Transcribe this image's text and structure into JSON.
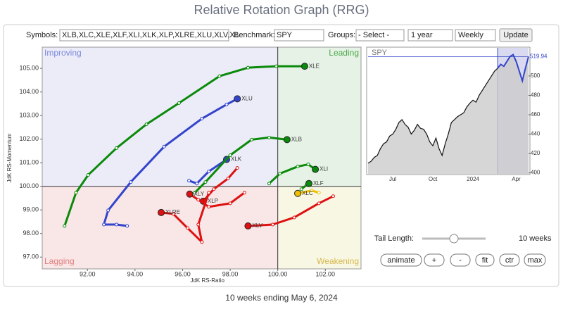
{
  "title": "Relative Rotation Graph (RRG)",
  "controls": {
    "symbols_label": "Symbols:",
    "symbols": "XLB,XLC,XLE,XLF,XLI,XLK,XLP,XLRE,XLU,XLV,XL",
    "benchmark_label": "Benchmark:",
    "benchmark": "SPY",
    "groups_label": "Groups:",
    "groups": "- Select -",
    "period": "1 year",
    "frequency": "Weekly",
    "update": "Update",
    "tail_label": "Tail Length:",
    "tail": "10 weeks",
    "buttons": [
      "animate",
      "+",
      "-",
      "fit",
      "ctr",
      "max"
    ]
  },
  "footer": "10 weeks ending May 6, 2024",
  "chart_data": [
    {
      "type": "rrg",
      "xlabel": "JdK RS-Ratio",
      "ylabel": "JdK RS-Momentum",
      "quadrants": {
        "improving": "Improving",
        "leading": "Leading",
        "lagging": "Lagging",
        "weakening": "Weakening"
      },
      "xlim": [
        90.1,
        103.5
      ],
      "ylim": [
        96.5,
        105.9
      ],
      "xticks": [
        {
          "value": 92,
          "label": "92.00"
        },
        {
          "value": 94,
          "label": "94.00"
        },
        {
          "value": 96,
          "label": "96.00"
        },
        {
          "value": 98,
          "label": "98.00"
        },
        {
          "value": 100,
          "label": "100.00"
        },
        {
          "value": 102,
          "label": "102.00"
        }
      ],
      "yticks": [
        {
          "value": 97,
          "label": "97.00"
        },
        {
          "value": 98,
          "label": "98.00"
        },
        {
          "value": 99,
          "label": "99.00"
        },
        {
          "value": 100,
          "label": "100.00"
        },
        {
          "value": 101,
          "label": "101.00"
        },
        {
          "value": 102,
          "label": "102.00"
        },
        {
          "value": 103,
          "label": "103.00"
        },
        {
          "value": 104,
          "label": "104.00"
        },
        {
          "value": 105,
          "label": "105.00"
        }
      ],
      "series": [
        {
          "name": "XLE",
          "color": "#0a8a0a",
          "x": [
            91.04,
            91.52,
            92.03,
            93.22,
            94.48,
            95.85,
            97.55,
            98.75,
            99.94,
            101.13
          ],
          "y": [
            98.32,
            99.73,
            100.48,
            101.62,
            102.63,
            103.53,
            104.67,
            105.03,
            105.09,
            105.09
          ]
        },
        {
          "name": "XLU",
          "color": "#3344cc",
          "x": [
            93.67,
            93.22,
            92.69,
            92.87,
            93.82,
            95.22,
            96.81,
            97.85,
            98.3
          ],
          "y": [
            98.32,
            98.38,
            98.38,
            98.98,
            100.18,
            101.68,
            102.87,
            103.47,
            103.71
          ]
        },
        {
          "name": "XLK",
          "color": "#3344cc",
          "x": [
            96.27,
            96.6,
            97.1,
            97.85
          ],
          "y": [
            100.24,
            100.12,
            100.63,
            101.14
          ]
        },
        {
          "name": "XLB",
          "color": "#0a8a0a",
          "x": [
            96.51,
            96.96,
            98.0,
            98.9,
            99.64,
            100.39
          ],
          "y": [
            99.73,
            100.18,
            101.32,
            101.98,
            102.07,
            101.98
          ]
        },
        {
          "name": "XLI",
          "color": "#0a8a0a",
          "x": [
            99.64,
            100.09,
            100.84,
            101.28,
            101.58
          ],
          "y": [
            100.12,
            100.54,
            100.84,
            100.93,
            100.72
          ]
        },
        {
          "name": "XLF",
          "color": "#0a8a0a",
          "x": [
            100.99,
            101.22,
            101.31
          ],
          "y": [
            99.88,
            100.06,
            100.12
          ]
        },
        {
          "name": "XLC",
          "color": "#f0c000",
          "x": [
            101.73,
            101.43,
            100.84
          ],
          "y": [
            99.73,
            99.82,
            99.7
          ]
        },
        {
          "name": "XLV",
          "color": "#dd1111",
          "x": [
            102.33,
            101.73,
            100.69,
            99.79,
            98.75
          ],
          "y": [
            99.58,
            99.28,
            98.68,
            98.38,
            98.32
          ]
        },
        {
          "name": "XLP",
          "color": "#dd1111",
          "x": [
            98.3,
            97.91,
            97.31,
            96.87
          ],
          "y": [
            100.78,
            100.33,
            99.88,
            99.37
          ]
        },
        {
          "name": "XLY",
          "color": "#dd1111",
          "x": [
            98.6,
            98.0,
            97.1,
            96.66,
            96.3
          ],
          "y": [
            99.73,
            99.28,
            99.13,
            99.43,
            99.67
          ]
        },
        {
          "name": "XLRE",
          "color": "#dd1111",
          "x": [
            97.1,
            96.66,
            96.81,
            96.21,
            95.61,
            95.1
          ],
          "y": [
            99.73,
            98.38,
            97.64,
            98.23,
            98.83,
            98.89
          ]
        }
      ]
    },
    {
      "type": "line",
      "title": "SPY",
      "color": "#3344cc",
      "categories": [
        null,
        null,
        null,
        null,
        null,
        null,
        null,
        null,
        "Jul",
        null,
        null,
        null,
        null,
        null,
        null,
        null,
        null,
        null,
        null,
        null,
        null,
        "Oct",
        null,
        null,
        null,
        null,
        null,
        null,
        null,
        null,
        null,
        null,
        null,
        null,
        "2024",
        null,
        null,
        null,
        null,
        null,
        null,
        null,
        null,
        null,
        null,
        null,
        null,
        null,
        "Apr",
        null,
        null,
        null,
        null
      ],
      "values": [
        410,
        412,
        416,
        418,
        425,
        430,
        432,
        438,
        440,
        445,
        452,
        455,
        450,
        447,
        440,
        444,
        450,
        446,
        445,
        440,
        432,
        428,
        436,
        425,
        418,
        430,
        440,
        452,
        455,
        458,
        460,
        462,
        468,
        472,
        475,
        473,
        480,
        485,
        490,
        495,
        500,
        505,
        508,
        512,
        510,
        515,
        520,
        522,
        515,
        505,
        495,
        508,
        519.94
      ],
      "ylim": [
        399,
        529
      ],
      "yticks": [
        400,
        420,
        440,
        460,
        480,
        500
      ]
    }
  ]
}
